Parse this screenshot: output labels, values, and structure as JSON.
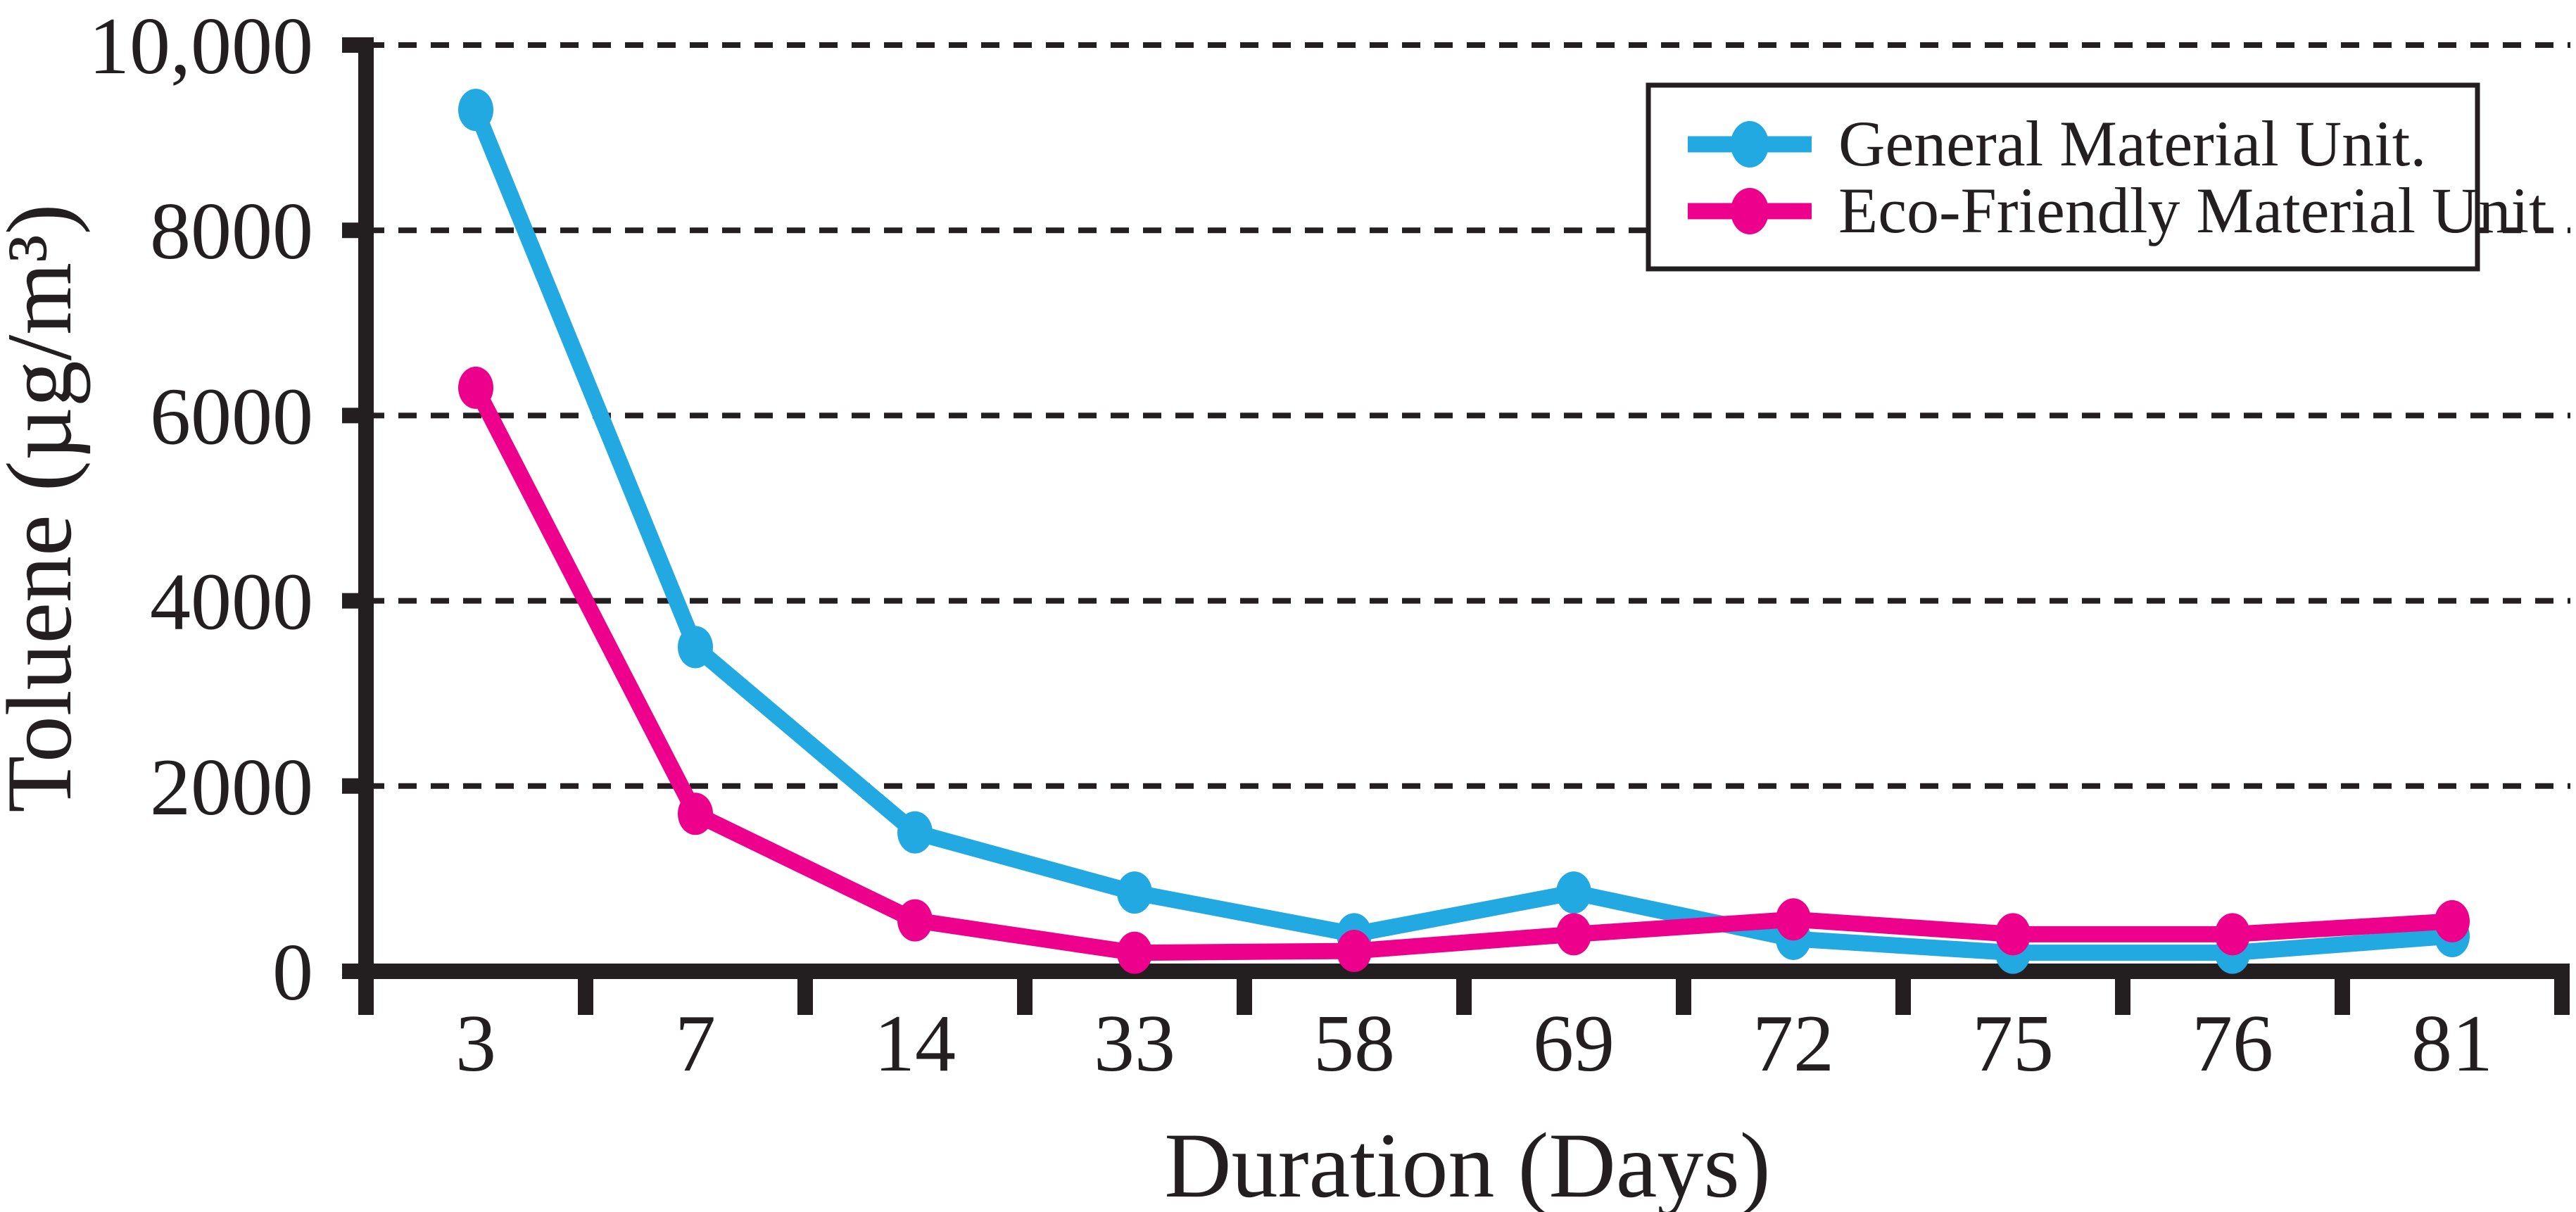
{
  "chart_data": {
    "type": "line",
    "title": "",
    "xlabel": "Duration (Days)",
    "ylabel": "Toluene (µg/m³)",
    "categories": [
      "3",
      "7",
      "14",
      "33",
      "58",
      "69",
      "72",
      "75",
      "76",
      "81"
    ],
    "x": [
      3,
      7,
      14,
      33,
      58,
      69,
      72,
      75,
      76,
      81
    ],
    "ylim": [
      0,
      10000
    ],
    "yticks": [
      0,
      2000,
      4000,
      6000,
      8000,
      10000
    ],
    "ytick_labels": [
      "0",
      "2000",
      "4000",
      "6000",
      "8000",
      "10,000"
    ],
    "grid": "horizontal-dashed",
    "legend_position": "top-right",
    "series": [
      {
        "name": "General Material Unit.",
        "color": "#23A9E1",
        "marker": "ellipse",
        "values": [
          9300,
          3500,
          1500,
          850,
          400,
          850,
          350,
          200,
          200,
          380
        ]
      },
      {
        "name": "Eco-Friendly Material Unit",
        "color": "#EC008C",
        "marker": "ellipse",
        "values": [
          6300,
          1700,
          550,
          200,
          220,
          400,
          560,
          400,
          400,
          540
        ]
      }
    ],
    "colors": {
      "axis": "#231F20",
      "grid": "#231F20",
      "background": "#FFFFFF"
    }
  }
}
